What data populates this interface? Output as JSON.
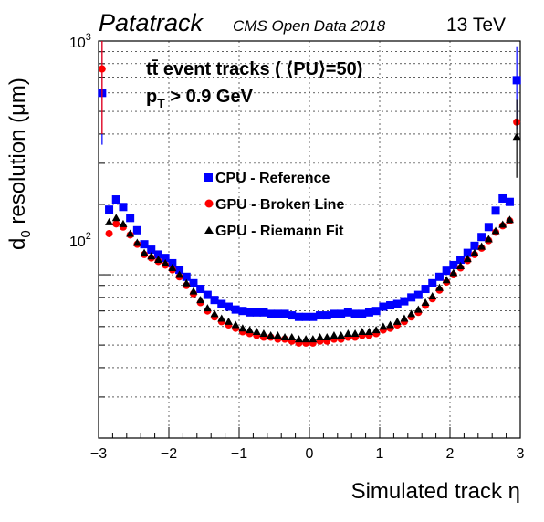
{
  "header": {
    "brand": "Patatrack",
    "subtitle": "CMS Open Data 2018",
    "energy": "13 TeV"
  },
  "annotation": {
    "line1": "tt̄ event tracks ( ⟨PU⟩=50)",
    "line2_main": "p",
    "line2_sub": "T",
    "line2_rest": " > 0.9 GeV"
  },
  "legend": [
    {
      "label": "CPU - Reference",
      "color": "#0000ff",
      "marker": "square"
    },
    {
      "label": "GPU - Broken Line",
      "color": "#ff0000",
      "marker": "circle"
    },
    {
      "label": "GPU - Riemann Fit",
      "color": "#000000",
      "marker": "triangle"
    }
  ],
  "chart_data": {
    "type": "scatter",
    "xlabel": "Simulated track η",
    "ylabel": "d0 resolution (μm)",
    "ylabel_main": "d",
    "ylabel_sub": "0",
    "ylabel_rest": " resolution (μm)",
    "xlim": [
      -3,
      3
    ],
    "ylim": [
      20,
      1000
    ],
    "yscale": "log",
    "x_ticks": [
      "−3",
      "−2",
      "−1",
      "0",
      "1",
      "2",
      "3"
    ],
    "y_tick_labels": [
      {
        "base": "10",
        "exp": "2",
        "value": 100
      },
      {
        "base": "10",
        "exp": "3",
        "value": 1000
      }
    ],
    "grid": true,
    "legend_position": "center",
    "series": [
      {
        "name": "CPU - Reference",
        "color": "#0000ff",
        "marker": "square",
        "x": [
          -2.95,
          -2.85,
          -2.75,
          -2.65,
          -2.55,
          -2.45,
          -2.35,
          -2.25,
          -2.15,
          -2.05,
          -1.95,
          -1.85,
          -1.75,
          -1.65,
          -1.55,
          -1.45,
          -1.35,
          -1.25,
          -1.15,
          -1.05,
          -0.95,
          -0.85,
          -0.75,
          -0.65,
          -0.55,
          -0.45,
          -0.35,
          -0.25,
          -0.15,
          -0.05,
          0.05,
          0.15,
          0.25,
          0.35,
          0.45,
          0.55,
          0.65,
          0.75,
          0.85,
          0.95,
          1.05,
          1.15,
          1.25,
          1.35,
          1.45,
          1.55,
          1.65,
          1.75,
          1.85,
          1.95,
          2.05,
          2.15,
          2.25,
          2.35,
          2.45,
          2.55,
          2.65,
          2.75,
          2.85,
          2.95
        ],
        "y": [
          600,
          190,
          210,
          195,
          175,
          155,
          135,
          128,
          122,
          118,
          112,
          105,
          98,
          92,
          87,
          82,
          78,
          75,
          73,
          71,
          70,
          69,
          69,
          69,
          68,
          68,
          68,
          67,
          66,
          66,
          66,
          67,
          67,
          68,
          68,
          69,
          68,
          68,
          69,
          70,
          73,
          74,
          75,
          77,
          80,
          82,
          87,
          92,
          98,
          104,
          110,
          116,
          124,
          133,
          145,
          160,
          188,
          212,
          205,
          680
        ],
        "err": [
          [
            360,
            1000
          ],
          null,
          null,
          null,
          null,
          null,
          null,
          null,
          null,
          null,
          null,
          null,
          null,
          null,
          null,
          null,
          null,
          null,
          null,
          null,
          null,
          null,
          null,
          null,
          null,
          null,
          null,
          null,
          null,
          null,
          null,
          null,
          null,
          null,
          null,
          null,
          null,
          null,
          null,
          null,
          null,
          null,
          null,
          null,
          null,
          null,
          null,
          null,
          null,
          null,
          null,
          null,
          null,
          null,
          null,
          null,
          null,
          null,
          null,
          [
            420,
            950
          ]
        ]
      },
      {
        "name": "GPU - Broken Line",
        "color": "#ff0000",
        "marker": "circle",
        "x": [
          -2.95,
          -2.85,
          -2.75,
          -2.65,
          -2.55,
          -2.45,
          -2.35,
          -2.25,
          -2.15,
          -2.05,
          -1.95,
          -1.85,
          -1.75,
          -1.65,
          -1.55,
          -1.45,
          -1.35,
          -1.25,
          -1.15,
          -1.05,
          -0.95,
          -0.85,
          -0.75,
          -0.65,
          -0.55,
          -0.45,
          -0.35,
          -0.25,
          -0.15,
          -0.05,
          0.05,
          0.15,
          0.25,
          0.35,
          0.45,
          0.55,
          0.65,
          0.75,
          0.85,
          0.95,
          1.05,
          1.15,
          1.25,
          1.35,
          1.45,
          1.55,
          1.65,
          1.75,
          1.85,
          1.95,
          2.05,
          2.15,
          2.25,
          2.35,
          2.45,
          2.55,
          2.65,
          2.75,
          2.85,
          2.95
        ],
        "y": [
          760,
          150,
          165,
          160,
          148,
          135,
          122,
          118,
          114,
          110,
          105,
          98,
          90,
          83,
          76,
          70,
          66,
          63,
          61,
          59,
          57,
          56,
          55,
          54,
          54,
          53,
          53,
          52,
          51,
          51,
          51,
          52,
          52,
          53,
          53,
          54,
          54,
          55,
          55,
          56,
          58,
          59,
          61,
          63,
          66,
          69,
          74,
          79,
          86,
          93,
          100,
          107,
          115,
          122,
          130,
          140,
          152,
          162,
          170,
          450
        ],
        "err": [
          [
            400,
            1000
          ],
          null,
          null,
          null,
          null,
          null,
          null,
          null,
          null,
          null,
          null,
          null,
          null,
          null,
          null,
          null,
          null,
          null,
          null,
          null,
          null,
          null,
          null,
          null,
          null,
          null,
          null,
          null,
          null,
          null,
          null,
          null,
          null,
          null,
          null,
          null,
          null,
          null,
          null,
          null,
          null,
          null,
          null,
          null,
          null,
          null,
          null,
          null,
          null,
          null,
          null,
          null,
          null,
          null,
          null,
          null,
          null,
          null,
          null,
          null
        ]
      },
      {
        "name": "GPU - Riemann Fit",
        "color": "#000000",
        "marker": "triangle",
        "x": [
          -2.85,
          -2.75,
          -2.65,
          -2.55,
          -2.45,
          -2.35,
          -2.25,
          -2.15,
          -2.05,
          -1.95,
          -1.85,
          -1.75,
          -1.65,
          -1.55,
          -1.45,
          -1.35,
          -1.25,
          -1.15,
          -1.05,
          -0.95,
          -0.85,
          -0.75,
          -0.65,
          -0.55,
          -0.45,
          -0.35,
          -0.25,
          -0.15,
          -0.05,
          0.05,
          0.15,
          0.25,
          0.35,
          0.45,
          0.55,
          0.65,
          0.75,
          0.85,
          0.95,
          1.05,
          1.15,
          1.25,
          1.35,
          1.45,
          1.55,
          1.65,
          1.75,
          1.85,
          1.95,
          2.05,
          2.15,
          2.25,
          2.35,
          2.45,
          2.55,
          2.65,
          2.75,
          2.85,
          2.95
        ],
        "y": [
          168,
          175,
          165,
          150,
          137,
          124,
          120,
          116,
          112,
          107,
          100,
          92,
          85,
          78,
          72,
          68,
          65,
          63,
          61,
          59,
          58,
          57,
          56,
          55,
          55,
          54,
          54,
          53,
          53,
          53,
          54,
          54,
          55,
          55,
          56,
          56,
          57,
          57,
          58,
          60,
          61,
          63,
          65,
          68,
          71,
          76,
          81,
          88,
          95,
          102,
          109,
          117,
          124,
          132,
          142,
          154,
          164,
          172,
          390
        ],
        "err": [
          null,
          null,
          null,
          null,
          null,
          null,
          null,
          null,
          null,
          null,
          null,
          null,
          null,
          null,
          null,
          null,
          null,
          null,
          null,
          null,
          null,
          null,
          null,
          null,
          null,
          null,
          null,
          null,
          null,
          null,
          null,
          null,
          null,
          null,
          null,
          null,
          null,
          null,
          null,
          null,
          null,
          null,
          null,
          null,
          null,
          null,
          null,
          null,
          null,
          null,
          null,
          null,
          null,
          null,
          null,
          null,
          null,
          null,
          [
            260,
            560
          ]
        ]
      }
    ]
  }
}
